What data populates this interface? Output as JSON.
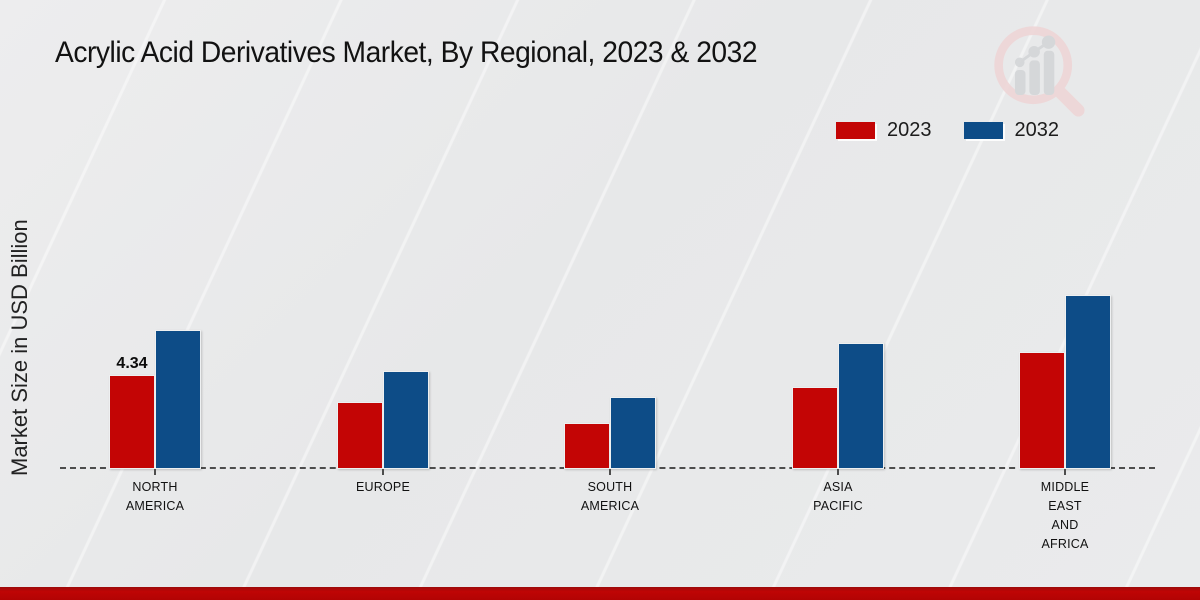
{
  "title": "Acrylic Acid Derivatives Market, By Regional, 2023 & 2032",
  "ylabel": "Market Size in USD Billion",
  "legend": {
    "items": [
      {
        "label": "2023",
        "color": "#c30505"
      },
      {
        "label": "2032",
        "color": "#0d4c87"
      }
    ]
  },
  "colors": {
    "series_2023": "#c30505",
    "series_2032": "#0d4c87",
    "baseline": "#4d4d4d",
    "bottom_stripe": "#b20303",
    "background": "#e9eaeb"
  },
  "chart_data": {
    "type": "bar",
    "categories": [
      "NORTH AMERICA",
      "EUROPE",
      "SOUTH AMERICA",
      "ASIA PACIFIC",
      "MIDDLE EAST AND AFRICA"
    ],
    "category_lines": [
      [
        "NORTH",
        "AMERICA"
      ],
      [
        "EUROPE"
      ],
      [
        "SOUTH",
        "AMERICA"
      ],
      [
        "ASIA",
        "PACIFIC"
      ],
      [
        "MIDDLE",
        "EAST",
        "AND",
        "AFRICA"
      ]
    ],
    "series": [
      {
        "name": "2023",
        "color": "#c30505",
        "values": [
          4.34,
          3.1,
          2.1,
          3.8,
          5.4
        ]
      },
      {
        "name": "2032",
        "color": "#0d4c87",
        "values": [
          6.4,
          4.5,
          3.3,
          5.8,
          8.0
        ]
      }
    ],
    "annotations": [
      {
        "category_index": 0,
        "series_index": 0,
        "text": "4.34"
      }
    ],
    "title": "Acrylic Acid Derivatives Market, By Regional, 2023 & 2032",
    "xlabel": "",
    "ylabel": "Market Size in USD Billion",
    "ylim": [
      0,
      8.5
    ],
    "grid": false,
    "y_axis_ticks_visible": false,
    "baseline_style": "dashed",
    "legend_position": "top-right"
  }
}
